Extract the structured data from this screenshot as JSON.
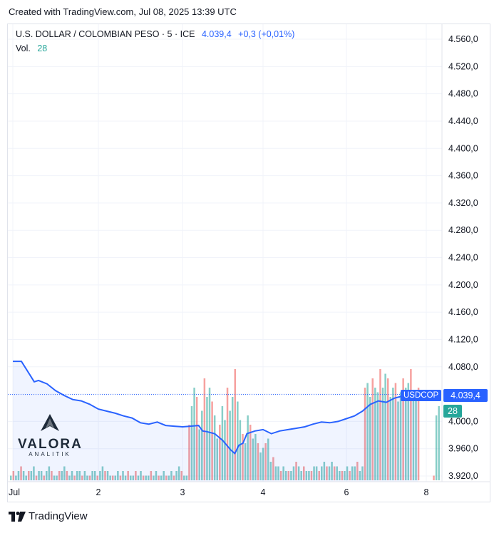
{
  "caption": "Created with TradingView.com, Jul 08, 2025 13:39 UTC",
  "legend": {
    "symbol": "U.S. DOLLAR / COLOMBIAN PESO · 5 · ICE",
    "last": "4.039,4",
    "change": "+0,3 (+0,01%)",
    "vol_label": "Vol.",
    "vol_value": "28"
  },
  "badges": {
    "symbol": "USDCOP",
    "price": "4.039,4",
    "volume": "28"
  },
  "watermark": {
    "title": "VALORA",
    "subtitle": "ANALITIK"
  },
  "footer": {
    "brand": "TradingView"
  },
  "colors": {
    "line": "#2962ff",
    "vol_up": "#26a69a",
    "vol_down": "#ef5350",
    "grid": "#f0f3fa"
  },
  "chart_data": {
    "type": "line",
    "title": "",
    "xlabel": "",
    "ylabel": "",
    "ylim": [
      3920,
      4560
    ],
    "ytick_values": [
      3920,
      3960,
      4000,
      4040,
      4080,
      4120,
      4160,
      4200,
      4240,
      4280,
      4320,
      4360,
      4400,
      4440,
      4480,
      4520,
      4560
    ],
    "ytick_labels": [
      "3.920,0",
      "3.960,0",
      "4.000,0",
      "4.040,0",
      "4.080,0",
      "4.120,0",
      "4.160,0",
      "4.200,0",
      "4.240,0",
      "4.280,0",
      "4.320,0",
      "4.360,0",
      "4.400,0",
      "4.440,0",
      "4.480,0",
      "4.520,0",
      "4.560,0"
    ],
    "xticks": [
      {
        "label": "Jul",
        "t": 0.0
      },
      {
        "label": "2",
        "t": 1.0
      },
      {
        "label": "3",
        "t": 2.0
      },
      {
        "label": "4",
        "t": 3.0
      },
      {
        "label": "6",
        "t": 4.0
      },
      {
        "label": "8",
        "t": 5.0
      }
    ],
    "series": [
      {
        "values_t": [
          0.0,
          0.1,
          0.2,
          0.25,
          0.3,
          0.4,
          0.5,
          0.6,
          0.7,
          0.8,
          0.9,
          1.0,
          1.1,
          1.2,
          1.3,
          1.4,
          1.5,
          1.6,
          1.7,
          1.8,
          1.9,
          2.0,
          2.1,
          2.2,
          2.25,
          2.3,
          2.4,
          2.5,
          2.6,
          2.65,
          2.7,
          2.75,
          2.8,
          2.9,
          3.0,
          3.1,
          3.2,
          3.3,
          3.4,
          3.5,
          3.6,
          3.7,
          3.8,
          3.9,
          4.0,
          4.1,
          4.2,
          4.3,
          4.4,
          4.5,
          4.6,
          4.7,
          4.8,
          4.9
        ],
        "values": [
          4088,
          4088,
          4068,
          4058,
          4060,
          4055,
          4045,
          4038,
          4032,
          4030,
          4025,
          4018,
          4015,
          4012,
          4008,
          4005,
          3998,
          3996,
          3999,
          3994,
          3993,
          3992,
          3993,
          3994,
          3986,
          3985,
          3982,
          3972,
          3958,
          3953,
          3965,
          3968,
          3982,
          3986,
          3988,
          3982,
          3986,
          3988,
          3990,
          3992,
          3996,
          3999,
          3998,
          4000,
          4004,
          4008,
          4015,
          4025,
          4030,
          4028,
          4034,
          4037,
          4038,
          4039.4
        ]
      }
    ],
    "volume": [
      1,
      2,
      1,
      2,
      3,
      2,
      1,
      2,
      2,
      3,
      1,
      2,
      2,
      1,
      2,
      3,
      2,
      1,
      1,
      2,
      2,
      3,
      2,
      1,
      2,
      1,
      2,
      2,
      1,
      2,
      1,
      1,
      2,
      2,
      1,
      2,
      3,
      2,
      2,
      1,
      1,
      1,
      2,
      1,
      2,
      1,
      2,
      1,
      1,
      2,
      1,
      2,
      1,
      1,
      1,
      2,
      1,
      2,
      1,
      1,
      2,
      1,
      1,
      2,
      1,
      2,
      3,
      2,
      1,
      1,
      12,
      16,
      20,
      18,
      11,
      15,
      22,
      18,
      20,
      17,
      14,
      9,
      12,
      16,
      13,
      20,
      15,
      18,
      24,
      17,
      13,
      10,
      8,
      14,
      12,
      9,
      10,
      8,
      6,
      7,
      8,
      9,
      4,
      5,
      3,
      3,
      2,
      3,
      2,
      2,
      2,
      3,
      4,
      3,
      2,
      3,
      2,
      2,
      2,
      3,
      3,
      2,
      3,
      4,
      3,
      3,
      4,
      3,
      3,
      2,
      2,
      2,
      3,
      2,
      3,
      3,
      4,
      2,
      3,
      20,
      21,
      18,
      22,
      20,
      19,
      24,
      20,
      23,
      22,
      18,
      20,
      21,
      17,
      19,
      22,
      20,
      21,
      24,
      18,
      19,
      20,
      0,
      0,
      0,
      0,
      0,
      1,
      14,
      16
    ]
  }
}
